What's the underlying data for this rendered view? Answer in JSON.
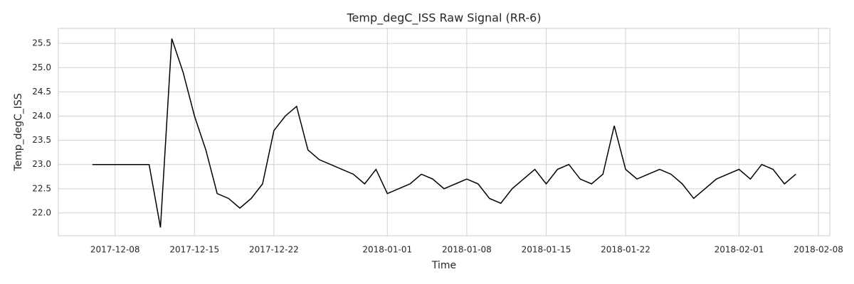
{
  "chart_data": {
    "type": "line",
    "title": "Temp_degC_ISS Raw Signal (RR-6)",
    "x_label": "Time",
    "y_label": "Temp_degC_ISS",
    "x": [
      "2017-12-06",
      "2017-12-07",
      "2017-12-08",
      "2017-12-09",
      "2017-12-10",
      "2017-12-11",
      "2017-12-12",
      "2017-12-13",
      "2017-12-14",
      "2017-12-15",
      "2017-12-16",
      "2017-12-17",
      "2017-12-18",
      "2017-12-19",
      "2017-12-20",
      "2017-12-21",
      "2017-12-22",
      "2017-12-23",
      "2017-12-24",
      "2017-12-25",
      "2017-12-26",
      "2017-12-27",
      "2017-12-28",
      "2017-12-29",
      "2017-12-30",
      "2017-12-31",
      "2018-01-01",
      "2018-01-02",
      "2018-01-03",
      "2018-01-04",
      "2018-01-05",
      "2018-01-06",
      "2018-01-07",
      "2018-01-08",
      "2018-01-09",
      "2018-01-10",
      "2018-01-11",
      "2018-01-12",
      "2018-01-13",
      "2018-01-14",
      "2018-01-15",
      "2018-01-16",
      "2018-01-17",
      "2018-01-18",
      "2018-01-19",
      "2018-01-20",
      "2018-01-21",
      "2018-01-22",
      "2018-01-23",
      "2018-01-24",
      "2018-01-25",
      "2018-01-26",
      "2018-01-27",
      "2018-01-28",
      "2018-01-29",
      "2018-01-30",
      "2018-01-31",
      "2018-02-01",
      "2018-02-02",
      "2018-02-03",
      "2018-02-04",
      "2018-02-05",
      "2018-02-06"
    ],
    "series": [
      {
        "name": "Temp_degC_ISS",
        "color": "#000000",
        "values": [
          23.0,
          23.0,
          23.0,
          23.0,
          23.0,
          23.0,
          21.7,
          25.6,
          24.9,
          24.0,
          23.3,
          22.4,
          22.3,
          22.1,
          22.3,
          22.6,
          23.7,
          24.0,
          24.2,
          23.3,
          23.1,
          23.0,
          22.9,
          22.8,
          22.6,
          22.9,
          22.4,
          22.5,
          22.6,
          22.8,
          22.7,
          22.5,
          22.6,
          22.7,
          22.6,
          22.3,
          22.2,
          22.5,
          22.7,
          22.9,
          22.6,
          22.9,
          23.0,
          22.7,
          22.6,
          22.8,
          23.8,
          22.9,
          22.7,
          22.8,
          22.9,
          22.8,
          22.6,
          22.3,
          22.5,
          22.7,
          22.8,
          22.9,
          22.7,
          23.0,
          22.9,
          22.6,
          22.8
        ]
      }
    ],
    "xlim": [
      "2017-12-03",
      "2018-02-09"
    ],
    "xticks": [
      "2017-12-08",
      "2017-12-15",
      "2017-12-22",
      "2018-01-01",
      "2018-01-08",
      "2018-01-15",
      "2018-01-22",
      "2018-02-01",
      "2018-02-08"
    ],
    "ylim": [
      21.53,
      25.81
    ],
    "yticks": [
      {
        "value": 22,
        "label": "22.0"
      },
      22.5,
      {
        "value": 23,
        "label": "23.0"
      },
      23.5,
      {
        "value": 24,
        "label": "24.0"
      },
      24.5,
      {
        "value": 25,
        "label": "25.0"
      },
      25.5
    ],
    "grid": true
  }
}
